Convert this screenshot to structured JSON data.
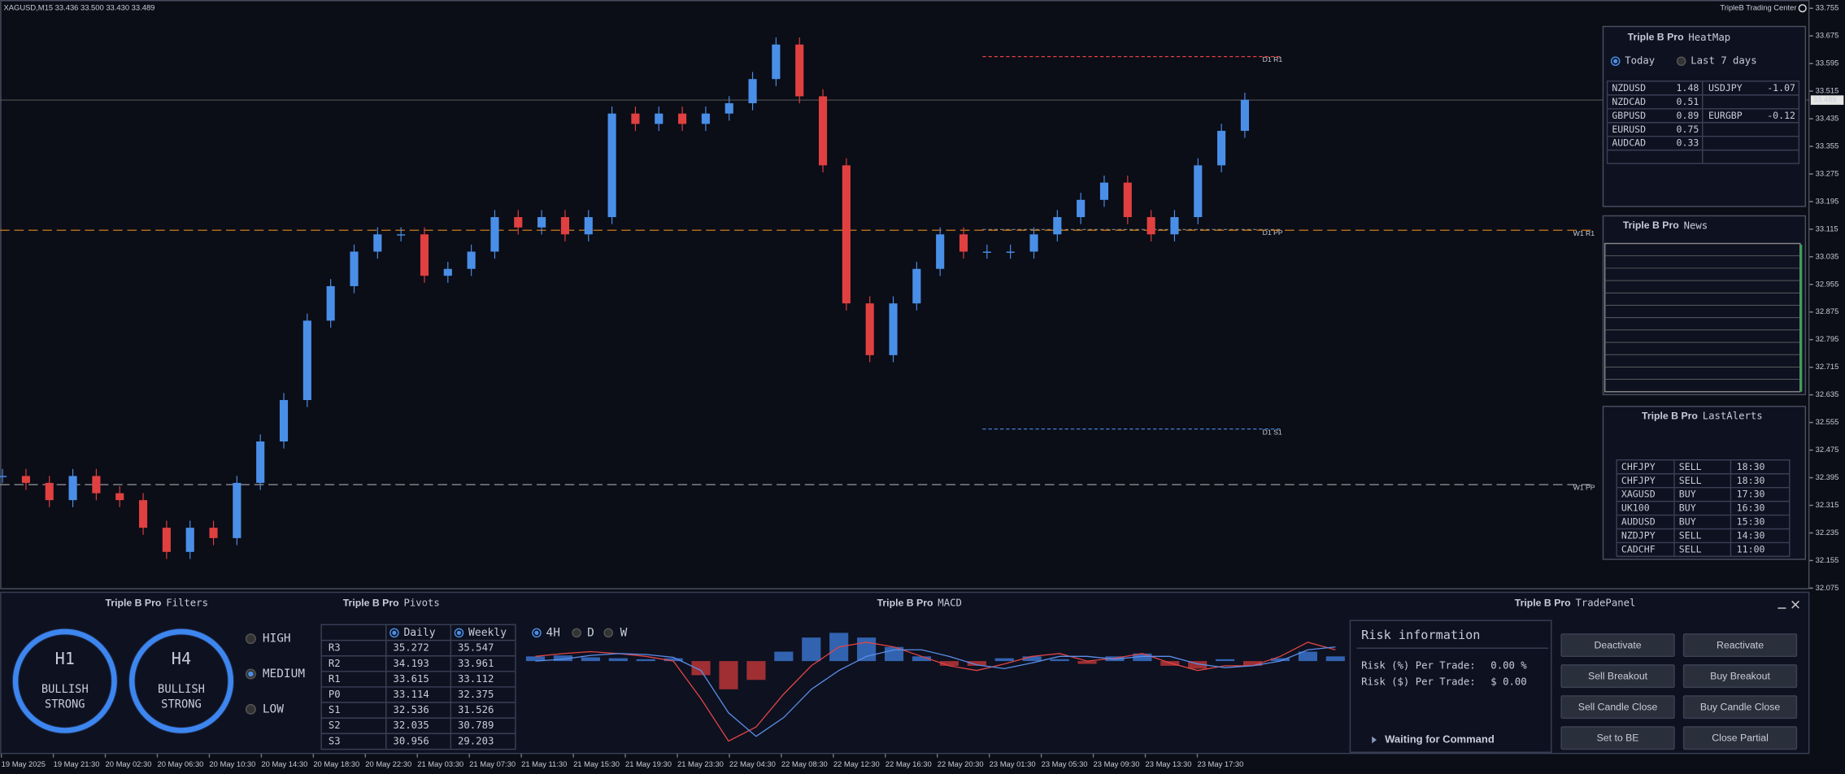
{
  "header": {
    "symbol": "XAGUSD,M15  33.436 33.500 33.430 33.489",
    "brand": "TripleB Trading Center"
  },
  "chart": {
    "type": "candlestick",
    "closes": [
      32.4,
      32.38,
      32.33,
      32.4,
      32.35,
      32.33,
      32.25,
      32.18,
      32.25,
      32.22,
      32.38,
      32.5,
      32.62,
      32.85,
      32.95,
      33.05,
      33.1,
      33.1,
      32.98,
      33.0,
      33.05,
      33.15,
      33.12,
      33.15,
      33.1,
      33.15,
      33.45,
      33.42,
      33.45,
      33.42,
      33.45,
      33.48,
      33.55,
      33.65,
      33.5,
      33.3,
      32.9,
      32.75,
      32.9,
      33.0,
      33.1,
      33.05,
      33.05,
      33.05,
      33.1,
      33.15,
      33.2,
      33.25,
      33.15,
      33.1,
      33.15,
      33.3,
      33.4,
      33.49
    ],
    "x_labels": [
      "19 May 2025",
      "19 May 21:30",
      "20 May 02:30",
      "20 May 06:30",
      "20 May 10:30",
      "20 May 14:30",
      "20 May 18:30",
      "20 May 22:30",
      "21 May 03:30",
      "21 May 07:30",
      "21 May 11:30",
      "21 May 15:30",
      "21 May 19:30",
      "21 May 23:30",
      "22 May 04:30",
      "22 May 08:30",
      "22 May 12:30",
      "22 May 16:30",
      "22 May 20:30",
      "23 May 01:30",
      "23 May 05:30",
      "23 May 09:30",
      "23 May 13:30",
      "23 May 17:30"
    ],
    "ylim": [
      32.075,
      33.779
    ],
    "yticks": [
      33.755,
      33.675,
      33.595,
      33.515,
      33.435,
      33.355,
      33.275,
      33.195,
      33.115,
      33.035,
      32.955,
      32.875,
      32.795,
      32.715,
      32.635,
      32.555,
      32.475,
      32.395,
      32.315,
      32.235,
      32.155,
      32.075
    ],
    "last_price": 33.489,
    "levels": [
      "D1 R1",
      "D1 PP",
      "D1 S1",
      "W1 R1",
      "W1 PP"
    ]
  },
  "heatmap": {
    "brand": "Triple B Pro",
    "title": "HeatMap",
    "options": [
      "Today",
      "Last 7 days"
    ],
    "rows": [
      [
        "NZDUSD",
        1.48,
        "USDJPY",
        -1.07
      ],
      [
        "NZDCAD",
        0.51
      ],
      [
        "GBPUSD",
        0.89,
        "EURGBP",
        -0.12
      ],
      [
        "EURUSD",
        0.75
      ],
      [
        "AUDCAD",
        0.33
      ]
    ]
  },
  "news": {
    "brand": "Triple B Pro",
    "title": "News"
  },
  "alerts": {
    "brand": "Triple B Pro",
    "title": "LastAlerts",
    "rows": [
      [
        "CHFJPY",
        "SELL",
        "18:30"
      ],
      [
        "CHFJPY",
        "SELL",
        "18:30"
      ],
      [
        "XAGUSD",
        "BUY",
        "17:30"
      ],
      [
        "UK100",
        "BUY",
        "16:30"
      ],
      [
        "AUDUSD",
        "BUY",
        "15:30"
      ],
      [
        "NZDJPY",
        "SELL",
        "14:30"
      ],
      [
        "CADCHF",
        "SELL",
        "11:00"
      ]
    ]
  },
  "filters": {
    "brand": "Triple B Pro",
    "title": "Filters",
    "gauges": [
      {
        "tf": "H1",
        "state": "BULLISH",
        "strength": "STRONG"
      },
      {
        "tf": "H4",
        "state": "BULLISH",
        "strength": "STRONG"
      }
    ],
    "levels": [
      "HIGH",
      "MEDIUM",
      "LOW"
    ]
  },
  "pivots": {
    "brand": "Triple B Pro",
    "title": "Pivots",
    "header": [
      "Daily",
      "Weekly"
    ],
    "rows": [
      [
        "R3",
        35.272,
        35.547
      ],
      [
        "R2",
        34.193,
        33.961
      ],
      [
        "R1",
        33.615,
        33.112
      ],
      [
        "P0",
        33.114,
        32.375
      ],
      [
        "S1",
        32.536,
        31.526
      ],
      [
        "S2",
        32.035,
        30.789
      ],
      [
        "S3",
        30.956,
        29.203
      ]
    ]
  },
  "macd": {
    "brand": "Triple B Pro",
    "title": "MACD",
    "timeframes": [
      "4H",
      "D",
      "W"
    ],
    "hist": [
      0.05,
      0.06,
      0.04,
      0.03,
      0.02,
      0.03,
      -0.15,
      -0.3,
      -0.2,
      0.1,
      0.25,
      0.3,
      0.25,
      0.15,
      0.05,
      -0.05,
      -0.05,
      0.03,
      0.05,
      0.02,
      -0.03,
      0.05,
      0.08,
      -0.05,
      -0.08,
      0.02,
      -0.05,
      0.03,
      0.1,
      0.05
    ],
    "macd": [
      0.05,
      0.08,
      0.1,
      0.08,
      0.05,
      0.0,
      -0.4,
      -0.85,
      -0.7,
      -0.35,
      -0.05,
      0.15,
      0.2,
      0.15,
      0.05,
      -0.05,
      -0.1,
      -0.03,
      0.05,
      0.08,
      0.0,
      0.03,
      0.08,
      -0.02,
      -0.1,
      -0.05,
      -0.05,
      0.05,
      0.2,
      0.12
    ],
    "signal": [
      0.0,
      0.02,
      0.06,
      0.08,
      0.07,
      0.04,
      -0.1,
      -0.55,
      -0.8,
      -0.6,
      -0.3,
      -0.1,
      0.05,
      0.12,
      0.12,
      0.05,
      -0.04,
      -0.08,
      -0.02,
      0.05,
      0.05,
      0.02,
      0.05,
      0.05,
      -0.03,
      -0.07,
      -0.05,
      0.0,
      0.12,
      0.15
    ]
  },
  "trade": {
    "brand": "Triple B Pro",
    "title": "TradePanel",
    "risk_title": "Risk information",
    "risk_pct_label": "Risk (%) Per Trade:",
    "risk_pct": "0.00 %",
    "risk_usd_label": "Risk ($) Per Trade:",
    "risk_usd": "$ 0.00",
    "status": "Waiting for Command",
    "buttons": [
      "Deactivate",
      "Reactivate",
      "Sell Breakout",
      "Buy Breakout",
      "Sell Candle Close",
      "Buy Candle Close",
      "Set to BE",
      "Close Partial"
    ]
  }
}
